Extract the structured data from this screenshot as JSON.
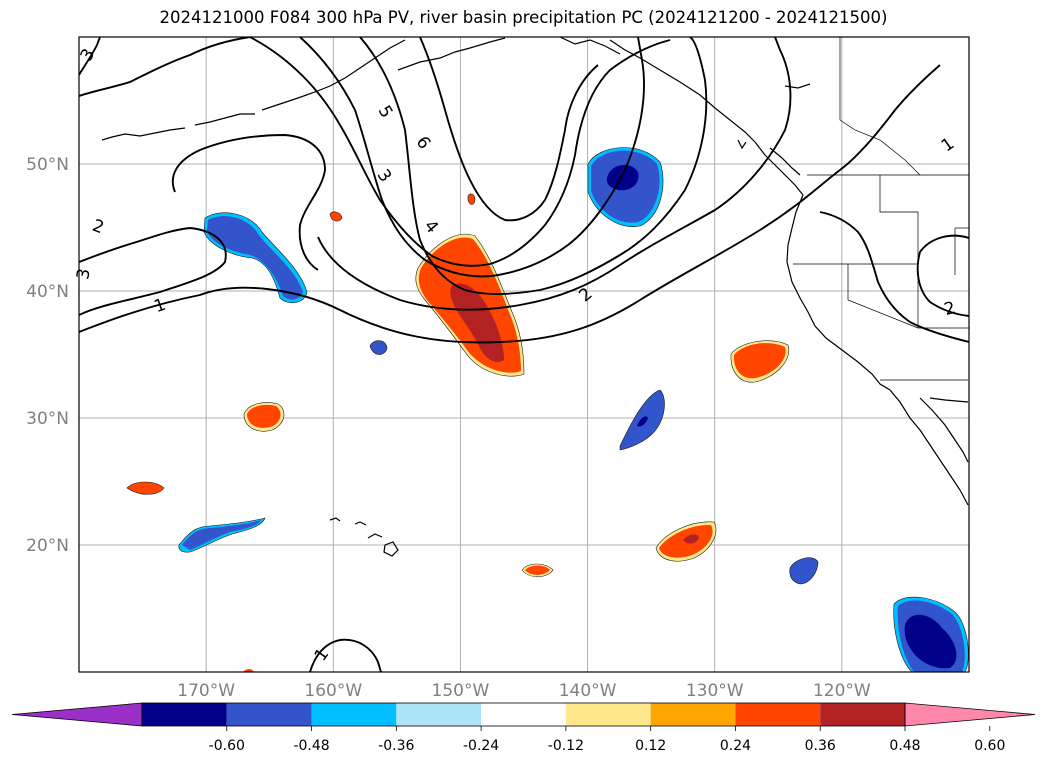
{
  "title": "2024121000 F084 300 hPa PV, river basin precipitation PC (2024121200 - 2024121500)",
  "map": {
    "lon_range": [
      -180,
      -110
    ],
    "lat_range": [
      10,
      60
    ],
    "lon_ticks": [
      -170,
      -160,
      -150,
      -140,
      -130,
      -120
    ],
    "lat_ticks": [
      20,
      30,
      40,
      50
    ],
    "lon_tick_labels": [
      "170°W",
      "160°W",
      "150°W",
      "140°W",
      "130°W",
      "120°W"
    ],
    "lat_tick_labels": [
      "20°N",
      "30°N",
      "40°N",
      "50°N"
    ],
    "gridlines": true,
    "gridline_color": "#b0b0b0",
    "axis_label_color": "#808080"
  },
  "pv_contours": {
    "color": "#000000",
    "labels": [
      "3",
      "2",
      "1",
      "5",
      "6",
      "3",
      "4",
      "2",
      "1",
      "2",
      "1",
      "3"
    ]
  },
  "colorbar": {
    "boundaries": [
      "-0.60",
      "-0.48",
      "-0.36",
      "-0.24",
      "-0.12",
      "0.12",
      "0.24",
      "0.36",
      "0.48",
      "0.60"
    ],
    "colors": [
      "#9a30c8",
      "#00008b",
      "#3355cc",
      "#00bfff",
      "#aee4fa",
      "#ffffff",
      "#ffe98c",
      "#ffa500",
      "#ff4500",
      "#b22222",
      "#ff88aa"
    ]
  }
}
